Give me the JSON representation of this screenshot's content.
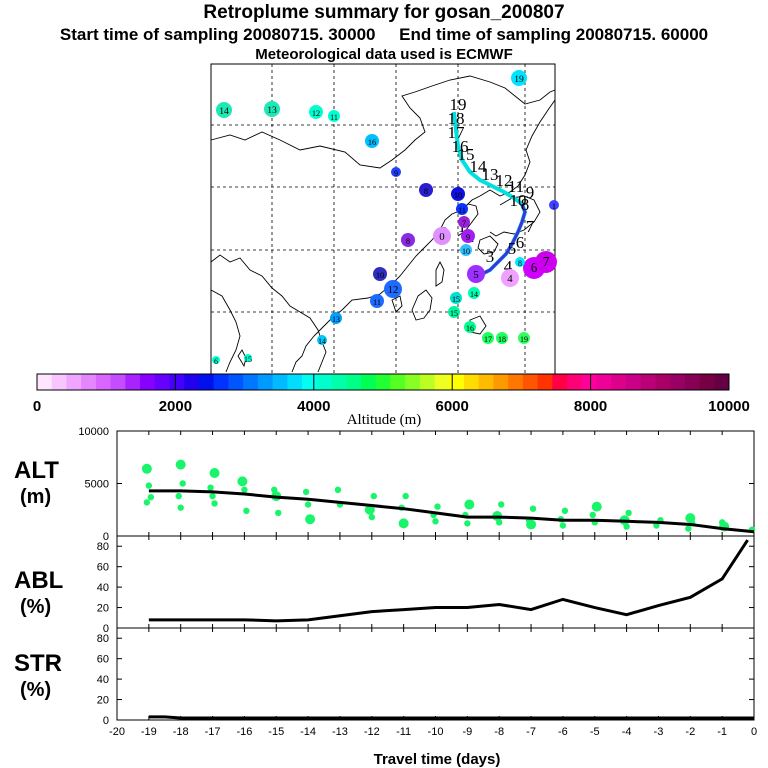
{
  "header": {
    "title": "Retroplume summary for gosan_200807",
    "start_label": "Start time of sampling 20080715. 30000",
    "end_label": "End time of sampling 20080715. 60000",
    "met_label": "Meteorological data used is ECMWF"
  },
  "map": {
    "trajectory_numbers": [
      "0",
      "1",
      "2",
      "3",
      "4",
      "5",
      "6",
      "7",
      "8",
      "9",
      "10",
      "11",
      "12",
      "13",
      "14",
      "15",
      "16",
      "17",
      "18",
      "19"
    ],
    "cluster_labels": [
      {
        "text": "19",
        "color": "#00e5ff"
      },
      {
        "text": "14",
        "color": "#1de9b6"
      },
      {
        "text": "13",
        "color": "#1de9b6"
      },
      {
        "text": "12",
        "color": "#00ffd0"
      },
      {
        "text": "11",
        "color": "#00ffd0"
      },
      {
        "text": "16",
        "color": "#00bfff"
      },
      {
        "text": "9",
        "color": "#2040ff"
      },
      {
        "text": "8",
        "color": "#2a1fd0"
      },
      {
        "text": "10",
        "color": "#1010e0"
      },
      {
        "text": "11",
        "color": "#0b33ff"
      },
      {
        "text": "0",
        "color": "#e090ff"
      },
      {
        "text": "9",
        "color": "#a020f0"
      },
      {
        "text": "8",
        "color": "#8a2be2"
      },
      {
        "text": "7",
        "color": "#9b1fd6"
      },
      {
        "text": "10",
        "color": "#2f2fbf"
      },
      {
        "text": "12",
        "color": "#1e6bff"
      },
      {
        "text": "11",
        "color": "#1e6bff"
      },
      {
        "text": "13",
        "color": "#00a0ff"
      },
      {
        "text": "14",
        "color": "#00c8ff"
      },
      {
        "text": "15",
        "color": "#00e0d0"
      },
      {
        "text": "14",
        "color": "#00ffb3"
      },
      {
        "text": "15",
        "color": "#00f5a0"
      },
      {
        "text": "16",
        "color": "#00ff90"
      },
      {
        "text": "17",
        "color": "#20ff60"
      },
      {
        "text": "18",
        "color": "#20ff60"
      },
      {
        "text": "19",
        "color": "#30ff60"
      },
      {
        "text": "6",
        "color": "#d000ff"
      },
      {
        "text": "7",
        "color": "#cc00ee"
      },
      {
        "text": "5",
        "color": "#9b30ff"
      },
      {
        "text": "4",
        "color": "#f0a0ff"
      },
      {
        "text": "1",
        "color": "#4040ff"
      },
      {
        "text": "8",
        "color": "#00e8ff"
      },
      {
        "text": "6",
        "color": "#00ffd0"
      },
      {
        "text": "15",
        "color": "#00ffd0"
      },
      {
        "text": "10",
        "color": "#30c0ff"
      }
    ]
  },
  "colorbar": {
    "ticks": [
      "0",
      "2000",
      "4000",
      "6000",
      "8000",
      "10000"
    ],
    "title": "Altitude (m)",
    "colors": [
      "#ffe6ff",
      "#f7c6ff",
      "#eea6ff",
      "#e586ff",
      "#d866ff",
      "#c44dff",
      "#aa22ff",
      "#8800ff",
      "#6600ff",
      "#4400ff",
      "#2200f0",
      "#0011ee",
      "#0033ff",
      "#0055ff",
      "#0077ff",
      "#0099ff",
      "#00bbff",
      "#00ddff",
      "#00ffee",
      "#00ffcc",
      "#00ffaa",
      "#00ff88",
      "#00ff55",
      "#22ff33",
      "#55ff22",
      "#88ff22",
      "#bbff22",
      "#eeff22",
      "#ffff00",
      "#ffdd00",
      "#ffbb00",
      "#ff9900",
      "#ff7700",
      "#ff5500",
      "#ff3300",
      "#ff0044",
      "#ff0077",
      "#ff0099",
      "#ee0099",
      "#dd0088",
      "#cc0088",
      "#bb0077",
      "#aa0066",
      "#990066",
      "#880055",
      "#770044",
      "#660044"
    ]
  },
  "panels": {
    "alt": {
      "label1": "ALT",
      "label2": "(m)"
    },
    "abl": {
      "label1": "ABL",
      "label2": "(%)"
    },
    "str": {
      "label1": "STR",
      "label2": "(%)"
    },
    "xlabel": "Travel time (days)"
  },
  "chart_data": [
    {
      "type": "line",
      "title": "ALT",
      "ylabel": "(m)",
      "xlabel": "Travel time (days)",
      "xlim": [
        -20,
        0
      ],
      "ylim": [
        0,
        10000
      ],
      "yticks": [
        "0",
        "5000",
        "10000"
      ],
      "x": [
        -19,
        -18,
        -17,
        -16,
        -15,
        -14,
        -13,
        -12,
        -11,
        -10,
        -9,
        -8,
        -7,
        -6,
        -5,
        -4,
        -3,
        -2,
        -1,
        0
      ],
      "series": [
        {
          "name": "mean altitude",
          "values": [
            4300,
            4300,
            4200,
            4000,
            3700,
            3500,
            3200,
            2900,
            2600,
            2200,
            1800,
            1800,
            1700,
            1500,
            1500,
            1400,
            1300,
            1100,
            700,
            400
          ]
        }
      ],
      "scatter": {
        "x": [
          -19,
          -19,
          -19,
          -19,
          -18,
          -18,
          -18,
          -18,
          -17,
          -17,
          -17,
          -17,
          -16,
          -16,
          -16,
          -15,
          -15,
          -15,
          -14,
          -14,
          -14,
          -13,
          -13,
          -12,
          -12,
          -12,
          -11,
          -11,
          -11,
          -10,
          -10,
          -10,
          -9,
          -9,
          -9,
          -8,
          -8,
          -8,
          -7,
          -7,
          -7,
          -6,
          -6,
          -6,
          -5,
          -5,
          -5,
          -4,
          -4,
          -4,
          -3,
          -3,
          -2,
          -2,
          -2,
          -1,
          -1,
          0
        ],
        "y": [
          6400,
          4800,
          3700,
          3200,
          6800,
          5000,
          3800,
          2700,
          6000,
          4600,
          3800,
          3100,
          5200,
          4400,
          2400,
          4400,
          3800,
          2200,
          4200,
          3000,
          1600,
          4400,
          3000,
          3800,
          2500,
          1800,
          3800,
          2700,
          1200,
          2800,
          2000,
          1400,
          3000,
          2000,
          1200,
          3000,
          1900,
          1300,
          2600,
          1500,
          1100,
          2400,
          1600,
          1000,
          2800,
          2000,
          1300,
          2200,
          1500,
          900,
          1500,
          1000,
          1700,
          1200,
          700,
          1300,
          900,
          600
        ]
      }
    },
    {
      "type": "line",
      "title": "ABL",
      "ylabel": "(%)",
      "xlim": [
        -20,
        0
      ],
      "ylim": [
        0,
        90
      ],
      "yticks": [
        "0",
        "20",
        "40",
        "60",
        "80"
      ],
      "x": [
        -19,
        -18,
        -17,
        -16,
        -15,
        -14,
        -13,
        -12,
        -11,
        -10,
        -9,
        -8,
        -7,
        -6,
        -5,
        -4,
        -3,
        -2,
        -1,
        -0.2
      ],
      "series": [
        {
          "name": "ABL",
          "values": [
            8,
            8,
            8,
            8,
            7,
            8,
            12,
            16,
            18,
            20,
            20,
            23,
            18,
            28,
            20,
            13,
            22,
            30,
            48,
            86
          ]
        }
      ]
    },
    {
      "type": "line",
      "title": "STR",
      "ylabel": "(%)",
      "xlabel": "Travel time (days)",
      "xlim": [
        -20,
        0
      ],
      "ylim": [
        0,
        90
      ],
      "yticks": [
        "0",
        "20",
        "40",
        "60",
        "80"
      ],
      "xticks": [
        "-20",
        "-19",
        "-18",
        "-17",
        "-16",
        "-15",
        "-14",
        "-13",
        "-12",
        "-11",
        "-10",
        "-9",
        "-8",
        "-7",
        "-6",
        "-5",
        "-4",
        "-3",
        "-2",
        "-1",
        "0"
      ],
      "x": [
        -19,
        -18.5,
        -18,
        -17,
        -16,
        -15,
        -14,
        -13,
        -12,
        -11,
        -10,
        -9,
        -8,
        -7,
        -6,
        -5,
        -4,
        -3,
        -2,
        -1,
        0
      ],
      "series": [
        {
          "name": "STR",
          "values": [
            3,
            3,
            2,
            2,
            2,
            2,
            2,
            2,
            2,
            2,
            2,
            2,
            2,
            2,
            2,
            2,
            2,
            2,
            2,
            2,
            2
          ]
        }
      ]
    }
  ]
}
